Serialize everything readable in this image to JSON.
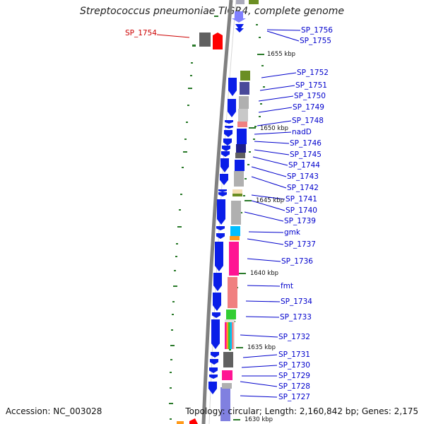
{
  "title": "Streptococcus pneumoniae TIGR4, complete genome",
  "footer": {
    "accession": "Accession: NC_003028",
    "stats": "Topology: circular; Length: 2,160,842 bp; Genes: 2,175"
  },
  "colors": {
    "label_blue": "#0000cc",
    "label_red": "#cc0000",
    "gene_blue": "#0a1ee8",
    "backbone": "#808080",
    "tick_green": "#2a7a2a"
  },
  "kbp_labels": [
    {
      "label": "1655 kbp",
      "kbp": 1655
    },
    {
      "label": "1650 kbp",
      "kbp": 1650
    },
    {
      "label": "1645 kbp",
      "kbp": 1645
    },
    {
      "label": "1640 kbp",
      "kbp": 1640
    },
    {
      "label": "1635 kbp",
      "kbp": 1635
    },
    {
      "label": "1630 kbp",
      "kbp": 1630
    }
  ],
  "gene_labels": [
    {
      "label": "SP_1756",
      "color": "#0000cc"
    },
    {
      "label": "SP_1755",
      "color": "#0000cc"
    },
    {
      "label": "SP_1754",
      "color": "#cc0000"
    },
    {
      "label": "SP_1752",
      "color": "#0000cc"
    },
    {
      "label": "SP_1751",
      "color": "#0000cc"
    },
    {
      "label": "SP_1750",
      "color": "#0000cc"
    },
    {
      "label": "SP_1749",
      "color": "#0000cc"
    },
    {
      "label": "SP_1748",
      "color": "#0000cc"
    },
    {
      "label": "nadD",
      "color": "#0000cc"
    },
    {
      "label": "SP_1746",
      "color": "#0000cc"
    },
    {
      "label": "SP_1745",
      "color": "#0000cc"
    },
    {
      "label": "SP_1744",
      "color": "#0000cc"
    },
    {
      "label": "SP_1743",
      "color": "#0000cc"
    },
    {
      "label": "SP_1742",
      "color": "#0000cc"
    },
    {
      "label": "SP_1741",
      "color": "#0000cc"
    },
    {
      "label": "SP_1740",
      "color": "#0000cc"
    },
    {
      "label": "SP_1739",
      "color": "#0000cc"
    },
    {
      "label": "gmk",
      "color": "#0000cc"
    },
    {
      "label": "SP_1737",
      "color": "#0000cc"
    },
    {
      "label": "SP_1736",
      "color": "#0000cc"
    },
    {
      "label": "fmt",
      "color": "#0000cc"
    },
    {
      "label": "SP_1734",
      "color": "#0000cc"
    },
    {
      "label": "SP_1733",
      "color": "#0000cc"
    },
    {
      "label": "SP_1732",
      "color": "#0000cc"
    },
    {
      "label": "SP_1731",
      "color": "#0000cc"
    },
    {
      "label": "SP_1730",
      "color": "#0000cc"
    },
    {
      "label": "SP_1729",
      "color": "#0000cc"
    },
    {
      "label": "SP_1728",
      "color": "#0000cc"
    },
    {
      "label": "SP_1727",
      "color": "#0000cc"
    }
  ],
  "cog_colors": [
    "#6b8e23",
    "#4a4a9a",
    "#b0b0b0",
    "#f08080",
    "#1e1e8a",
    "#00bfff",
    "#ff9a1a",
    "#ff1493",
    "#32cd32",
    "#606060"
  ]
}
